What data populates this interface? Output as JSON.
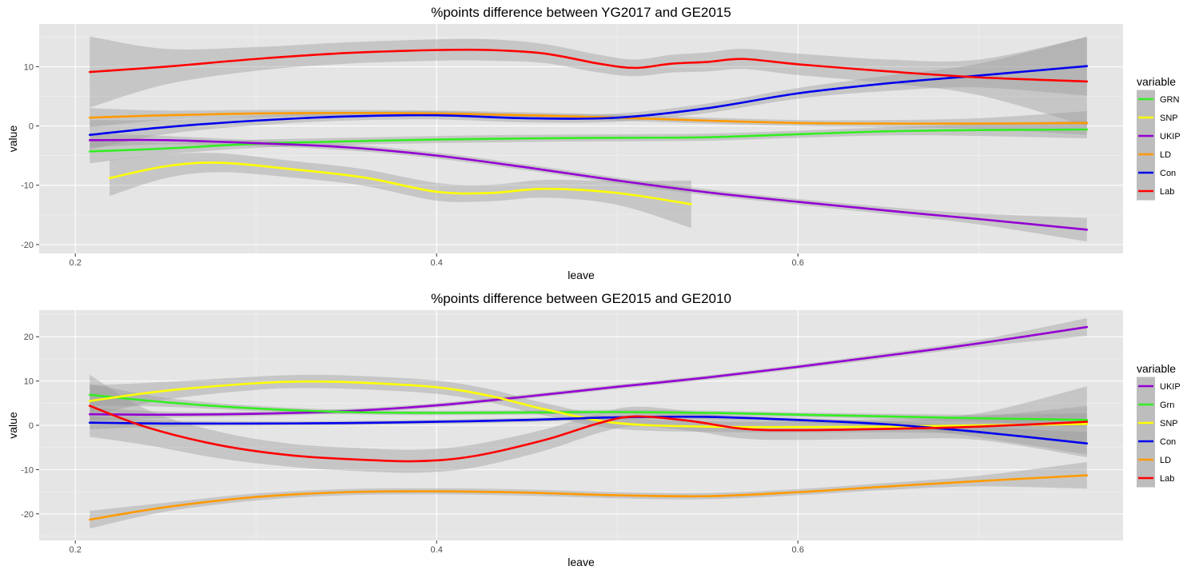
{
  "colors": {
    "panel_bg": "#e5e5e5",
    "grid_major": "#ffffff",
    "ribbon": "#999999",
    "GRN": "#33ee22",
    "Grn": "#33ee22",
    "SNP": "#ffff00",
    "UKIP": "#9400d3",
    "LD": "#ff9a00",
    "Con": "#0000ee",
    "Lab": "#ff0000"
  },
  "chart_data": [
    {
      "type": "line",
      "smoothed_with_confidence_band": true,
      "title": "%points difference between YG2017 and GE2015",
      "xlabel": "leave",
      "ylabel": "value",
      "xlim": [
        0.18,
        0.78
      ],
      "ylim": [
        -21.5,
        17.2
      ],
      "x_ticks": [
        0.2,
        0.4,
        0.6
      ],
      "x_tick_labels": [
        "0.2",
        "0.4",
        "0.6"
      ],
      "y_ticks": [
        -20,
        -10,
        0,
        10
      ],
      "y_tick_labels": [
        "-20",
        "-10",
        "0",
        "10"
      ],
      "grid": true,
      "legend": {
        "title": "variable",
        "position": "right",
        "entries": [
          "GRN",
          "SNP",
          "UKIP",
          "LD",
          "Con",
          "Lab"
        ]
      },
      "series": [
        {
          "name": "GRN",
          "x": [
            0.208,
            0.25,
            0.3,
            0.35,
            0.4,
            0.45,
            0.5,
            0.55,
            0.6,
            0.65,
            0.7,
            0.76
          ],
          "y": [
            -4.3,
            -3.8,
            -3.0,
            -2.6,
            -2.3,
            -2.1,
            -2.0,
            -1.9,
            -1.4,
            -0.9,
            -0.7,
            -0.6
          ],
          "band": [
            2.0,
            1.0,
            0.7,
            0.6,
            0.6,
            0.6,
            0.6,
            0.6,
            0.6,
            0.7,
            1.0,
            1.5
          ]
        },
        {
          "name": "SNP",
          "x": [
            0.219,
            0.25,
            0.28,
            0.32,
            0.36,
            0.4,
            0.43,
            0.46,
            0.5,
            0.541
          ],
          "y": [
            -8.8,
            -6.8,
            -6.2,
            -7.3,
            -8.7,
            -11.1,
            -11.3,
            -10.6,
            -11.3,
            -13.2
          ],
          "band": [
            3.0,
            2.0,
            1.6,
            1.4,
            1.4,
            1.5,
            1.4,
            1.5,
            2.0,
            4.0
          ]
        },
        {
          "name": "UKIP",
          "x": [
            0.208,
            0.25,
            0.3,
            0.35,
            0.4,
            0.45,
            0.5,
            0.55,
            0.6,
            0.65,
            0.7,
            0.76
          ],
          "y": [
            -2.4,
            -2.4,
            -2.9,
            -3.6,
            -5.0,
            -7.0,
            -9.2,
            -11.2,
            -12.8,
            -14.3,
            -15.7,
            -17.5
          ],
          "band": [
            1.2,
            0.7,
            0.5,
            0.5,
            0.5,
            0.5,
            0.5,
            0.5,
            0.5,
            0.6,
            0.9,
            2.0
          ]
        },
        {
          "name": "LD",
          "x": [
            0.208,
            0.25,
            0.3,
            0.35,
            0.4,
            0.45,
            0.5,
            0.55,
            0.6,
            0.65,
            0.7,
            0.76
          ],
          "y": [
            1.4,
            1.8,
            2.1,
            2.2,
            2.1,
            1.8,
            1.4,
            0.9,
            0.5,
            0.4,
            0.4,
            0.5
          ],
          "band": [
            1.6,
            0.8,
            0.6,
            0.5,
            0.5,
            0.5,
            0.5,
            0.5,
            0.5,
            0.6,
            0.9,
            2.0
          ]
        },
        {
          "name": "Con",
          "x": [
            0.208,
            0.25,
            0.3,
            0.35,
            0.4,
            0.45,
            0.5,
            0.55,
            0.6,
            0.65,
            0.7,
            0.76
          ],
          "y": [
            -1.5,
            -0.2,
            0.9,
            1.6,
            1.8,
            1.3,
            1.4,
            3.0,
            5.5,
            7.2,
            8.5,
            10.1
          ],
          "band": [
            2.5,
            1.2,
            0.8,
            0.7,
            0.7,
            0.7,
            0.7,
            0.8,
            0.9,
            1.3,
            2.0,
            5.0
          ]
        },
        {
          "name": "Lab",
          "x": [
            0.208,
            0.25,
            0.3,
            0.35,
            0.4,
            0.43,
            0.46,
            0.49,
            0.51,
            0.53,
            0.55,
            0.57,
            0.6,
            0.65,
            0.7,
            0.76
          ],
          "y": [
            9.1,
            10.0,
            11.3,
            12.3,
            12.8,
            12.8,
            12.2,
            10.5,
            9.8,
            10.5,
            10.8,
            11.3,
            10.4,
            9.2,
            8.2,
            7.5
          ],
          "band": [
            6.0,
            3.0,
            2.0,
            1.8,
            1.8,
            1.8,
            1.6,
            1.5,
            1.4,
            1.5,
            1.6,
            1.7,
            1.8,
            2.0,
            3.0,
            7.5
          ]
        }
      ]
    },
    {
      "type": "line",
      "smoothed_with_confidence_band": true,
      "title": "%points difference between GE2015 and GE2010",
      "xlabel": "leave",
      "ylabel": "value",
      "xlim": [
        0.18,
        0.78
      ],
      "ylim": [
        -26,
        26
      ],
      "x_ticks": [
        0.2,
        0.4,
        0.6
      ],
      "x_tick_labels": [
        "0.2",
        "0.4",
        "0.6"
      ],
      "y_ticks": [
        -20,
        -10,
        0,
        10,
        20
      ],
      "y_tick_labels": [
        "-20",
        "-10",
        "0",
        "10",
        "20"
      ],
      "grid": true,
      "legend": {
        "title": "variable",
        "position": "right",
        "entries": [
          "UKIP",
          "Grn",
          "SNP",
          "Con",
          "LD",
          "Lab"
        ]
      },
      "series": [
        {
          "name": "UKIP",
          "x": [
            0.208,
            0.25,
            0.3,
            0.35,
            0.4,
            0.45,
            0.5,
            0.55,
            0.6,
            0.65,
            0.7,
            0.76
          ],
          "y": [
            2.5,
            2.4,
            2.6,
            3.2,
            4.5,
            6.5,
            8.7,
            10.8,
            13.2,
            15.8,
            18.5,
            22.2
          ],
          "band": [
            1.5,
            0.7,
            0.5,
            0.5,
            0.5,
            0.5,
            0.5,
            0.5,
            0.5,
            0.6,
            0.8,
            2.0
          ]
        },
        {
          "name": "Grn",
          "x": [
            0.208,
            0.25,
            0.3,
            0.35,
            0.4,
            0.45,
            0.5,
            0.55,
            0.6,
            0.65,
            0.7,
            0.76
          ],
          "y": [
            6.9,
            5.2,
            3.8,
            3.0,
            2.8,
            2.9,
            3.0,
            2.8,
            2.4,
            2.0,
            1.6,
            1.2
          ],
          "band": [
            2.5,
            1.0,
            0.6,
            0.5,
            0.5,
            0.5,
            0.5,
            0.5,
            0.5,
            0.6,
            0.8,
            1.5
          ]
        },
        {
          "name": "SNP",
          "x": [
            0.208,
            0.25,
            0.3,
            0.33,
            0.36,
            0.4,
            0.43,
            0.46,
            0.5,
            0.55,
            0.6,
            0.65,
            0.7,
            0.76
          ],
          "y": [
            5.5,
            7.8,
            9.5,
            9.9,
            9.6,
            8.6,
            6.6,
            3.6,
            0.5,
            -0.3,
            -0.4,
            -0.3,
            0.0,
            0.3
          ],
          "band": [
            3.5,
            2.0,
            1.5,
            1.5,
            1.5,
            1.5,
            1.5,
            1.4,
            1.3,
            1.2,
            1.2,
            1.3,
            2.0,
            4.0
          ]
        },
        {
          "name": "Con",
          "x": [
            0.208,
            0.25,
            0.3,
            0.35,
            0.4,
            0.45,
            0.5,
            0.55,
            0.6,
            0.65,
            0.7,
            0.76
          ],
          "y": [
            0.6,
            0.4,
            0.4,
            0.5,
            0.8,
            1.2,
            1.8,
            1.9,
            1.2,
            0.2,
            -1.5,
            -4.1
          ],
          "band": [
            1.5,
            0.7,
            0.5,
            0.5,
            0.5,
            0.5,
            0.5,
            0.5,
            0.5,
            0.7,
            1.2,
            2.5
          ]
        },
        {
          "name": "LD",
          "x": [
            0.208,
            0.25,
            0.3,
            0.35,
            0.4,
            0.45,
            0.5,
            0.55,
            0.6,
            0.65,
            0.7,
            0.76
          ],
          "y": [
            -21.3,
            -18.5,
            -16.2,
            -15.1,
            -14.9,
            -15.2,
            -15.8,
            -16.0,
            -15.1,
            -13.8,
            -12.6,
            -11.3
          ],
          "band": [
            2.0,
            1.0,
            0.8,
            0.7,
            0.7,
            0.7,
            0.7,
            0.7,
            0.7,
            0.8,
            1.2,
            3.0
          ]
        },
        {
          "name": "Lab",
          "x": [
            0.208,
            0.24,
            0.28,
            0.32,
            0.36,
            0.39,
            0.42,
            0.46,
            0.49,
            0.51,
            0.54,
            0.57,
            0.6,
            0.65,
            0.7,
            0.76
          ],
          "y": [
            4.4,
            -0.5,
            -4.5,
            -6.8,
            -7.8,
            -8.1,
            -7.0,
            -3.3,
            0.5,
            2.0,
            1.0,
            -0.8,
            -1.1,
            -0.8,
            -0.3,
            0.8
          ],
          "band": [
            7.0,
            4.0,
            3.0,
            2.6,
            2.6,
            2.6,
            2.6,
            2.4,
            2.2,
            2.2,
            2.2,
            2.2,
            2.2,
            2.3,
            3.0,
            8.0
          ]
        }
      ]
    }
  ]
}
